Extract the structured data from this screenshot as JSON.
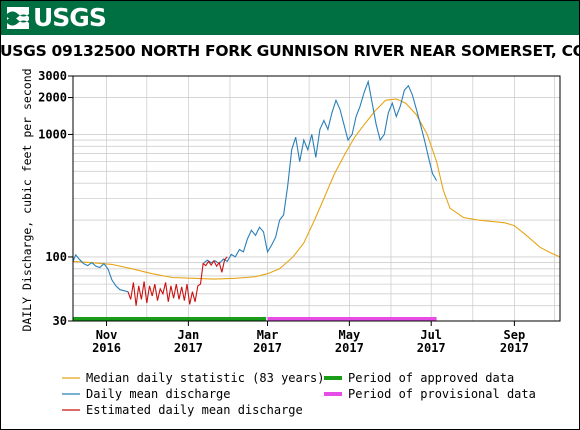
{
  "header": {
    "agency": "USGS"
  },
  "title": "USGS 09132500 NORTH FORK GUNNISON RIVER NEAR SOMERSET, CO.",
  "colors": {
    "banner": "#006f41",
    "median": "#e6a517",
    "mean": "#2a7fb8",
    "estimated": "#cc1111",
    "approved": "#1a9e1a",
    "provisional": "#e64ce6"
  },
  "legend": {
    "median": "Median daily statistic (83 years)",
    "mean": "Daily mean discharge",
    "estimated": "Estimated daily mean discharge",
    "approved": "Period of approved data",
    "provisional": "Period of provisional data"
  },
  "chart_data": {
    "type": "line",
    "title": "USGS 09132500 NORTH FORK GUNNISON RIVER NEAR SOMERSET, CO.",
    "ylabel": "DAILY Discharge, cubic feet per second",
    "xlabel": "",
    "yscale": "log",
    "ylim": [
      30,
      3000
    ],
    "xlim": [
      "2016-10-07",
      "2017-10-05"
    ],
    "y_ticks": [
      30,
      100,
      1000,
      2000,
      3000
    ],
    "x_ticks": [
      {
        "date": "2016-11-01",
        "month": "Nov",
        "year": "2016"
      },
      {
        "date": "2017-01-01",
        "month": "Jan",
        "year": "2017"
      },
      {
        "date": "2017-03-01",
        "month": "Mar",
        "year": "2017"
      },
      {
        "date": "2017-05-01",
        "month": "May",
        "year": "2017"
      },
      {
        "date": "2017-07-01",
        "month": "Jul",
        "year": "2017"
      },
      {
        "date": "2017-09-01",
        "month": "Sep",
        "year": "2017"
      }
    ],
    "grid": true,
    "legend_position": "bottom",
    "series": [
      {
        "name": "Median daily statistic (83 years)",
        "points": [
          [
            "2016-10-07",
            92
          ],
          [
            "2016-10-20",
            90
          ],
          [
            "2016-11-05",
            87
          ],
          [
            "2016-11-20",
            80
          ],
          [
            "2016-12-05",
            73
          ],
          [
            "2016-12-20",
            68
          ],
          [
            "2017-01-05",
            67
          ],
          [
            "2017-01-20",
            66
          ],
          [
            "2017-02-05",
            67
          ],
          [
            "2017-02-20",
            69
          ],
          [
            "2017-03-01",
            73
          ],
          [
            "2017-03-10",
            80
          ],
          [
            "2017-03-20",
            100
          ],
          [
            "2017-03-28",
            130
          ],
          [
            "2017-04-05",
            200
          ],
          [
            "2017-04-12",
            300
          ],
          [
            "2017-04-20",
            480
          ],
          [
            "2017-04-28",
            700
          ],
          [
            "2017-05-05",
            950
          ],
          [
            "2017-05-12",
            1200
          ],
          [
            "2017-05-20",
            1550
          ],
          [
            "2017-05-28",
            1900
          ],
          [
            "2017-06-05",
            1950
          ],
          [
            "2017-06-12",
            1800
          ],
          [
            "2017-06-20",
            1450
          ],
          [
            "2017-06-28",
            1000
          ],
          [
            "2017-07-05",
            600
          ],
          [
            "2017-07-10",
            350
          ],
          [
            "2017-07-15",
            250
          ],
          [
            "2017-07-25",
            210
          ],
          [
            "2017-08-05",
            200
          ],
          [
            "2017-08-15",
            195
          ],
          [
            "2017-08-25",
            190
          ],
          [
            "2017-09-01",
            180
          ],
          [
            "2017-09-10",
            150
          ],
          [
            "2017-09-20",
            120
          ],
          [
            "2017-09-28",
            108
          ],
          [
            "2017-10-05",
            100
          ]
        ]
      },
      {
        "name": "Daily mean discharge",
        "segments": [
          [
            [
              "2016-10-07",
              92
            ],
            [
              "2016-10-09",
              104
            ],
            [
              "2016-10-12",
              95
            ],
            [
              "2016-10-15",
              88
            ],
            [
              "2016-10-18",
              85
            ],
            [
              "2016-10-21",
              90
            ],
            [
              "2016-10-24",
              84
            ],
            [
              "2016-10-27",
              82
            ],
            [
              "2016-10-30",
              88
            ],
            [
              "2016-11-02",
              80
            ],
            [
              "2016-11-05",
              65
            ],
            [
              "2016-11-08",
              58
            ],
            [
              "2016-11-11",
              54
            ],
            [
              "2016-11-14",
              53
            ],
            [
              "2016-11-17",
              52
            ]
          ],
          [
            [
              "2017-01-12",
              88
            ],
            [
              "2017-01-15",
              94
            ],
            [
              "2017-01-18",
              90
            ],
            [
              "2017-01-21",
              93
            ],
            [
              "2017-01-24",
              88
            ],
            [
              "2017-01-27",
              96
            ],
            [
              "2017-01-30",
              92
            ],
            [
              "2017-02-02",
              105
            ],
            [
              "2017-02-05",
              100
            ],
            [
              "2017-02-08",
              115
            ],
            [
              "2017-02-11",
              110
            ],
            [
              "2017-02-14",
              140
            ],
            [
              "2017-02-17",
              165
            ],
            [
              "2017-02-20",
              150
            ],
            [
              "2017-02-23",
              175
            ],
            [
              "2017-02-26",
              160
            ],
            [
              "2017-03-01",
              110
            ],
            [
              "2017-03-04",
              125
            ],
            [
              "2017-03-07",
              145
            ],
            [
              "2017-03-10",
              200
            ],
            [
              "2017-03-13",
              220
            ],
            [
              "2017-03-16",
              380
            ],
            [
              "2017-03-19",
              750
            ],
            [
              "2017-03-22",
              950
            ],
            [
              "2017-03-25",
              600
            ],
            [
              "2017-03-28",
              900
            ],
            [
              "2017-03-31",
              750
            ],
            [
              "2017-04-03",
              1000
            ],
            [
              "2017-04-06",
              650
            ],
            [
              "2017-04-09",
              1100
            ],
            [
              "2017-04-12",
              1300
            ],
            [
              "2017-04-15",
              1100
            ],
            [
              "2017-04-18",
              1500
            ],
            [
              "2017-04-21",
              1900
            ],
            [
              "2017-04-24",
              1600
            ],
            [
              "2017-04-27",
              1200
            ],
            [
              "2017-04-30",
              900
            ],
            [
              "2017-05-03",
              1000
            ],
            [
              "2017-05-06",
              1400
            ],
            [
              "2017-05-09",
              1700
            ],
            [
              "2017-05-12",
              2200
            ],
            [
              "2017-05-15",
              2700
            ],
            [
              "2017-05-18",
              1800
            ],
            [
              "2017-05-21",
              1200
            ],
            [
              "2017-05-24",
              900
            ],
            [
              "2017-05-27",
              1000
            ],
            [
              "2017-05-30",
              1500
            ],
            [
              "2017-06-02",
              1800
            ],
            [
              "2017-06-05",
              1400
            ],
            [
              "2017-06-08",
              1700
            ],
            [
              "2017-06-11",
              2300
            ],
            [
              "2017-06-14",
              2500
            ],
            [
              "2017-06-17",
              2100
            ],
            [
              "2017-06-20",
              1600
            ],
            [
              "2017-06-23",
              1200
            ],
            [
              "2017-06-26",
              900
            ],
            [
              "2017-06-29",
              650
            ],
            [
              "2017-07-02",
              480
            ],
            [
              "2017-07-05",
              420
            ]
          ]
        ]
      },
      {
        "name": "Estimated daily mean discharge",
        "points": [
          [
            "2016-11-17",
            52
          ],
          [
            "2016-11-19",
            45
          ],
          [
            "2016-11-21",
            62
          ],
          [
            "2016-11-23",
            40
          ],
          [
            "2016-11-25",
            58
          ],
          [
            "2016-11-27",
            45
          ],
          [
            "2016-11-29",
            63
          ],
          [
            "2016-12-01",
            42
          ],
          [
            "2016-12-03",
            58
          ],
          [
            "2016-12-05",
            48
          ],
          [
            "2016-12-07",
            60
          ],
          [
            "2016-12-09",
            44
          ],
          [
            "2016-12-11",
            55
          ],
          [
            "2016-12-13",
            50
          ],
          [
            "2016-12-15",
            62
          ],
          [
            "2016-12-17",
            43
          ],
          [
            "2016-12-19",
            58
          ],
          [
            "2016-12-21",
            46
          ],
          [
            "2016-12-23",
            60
          ],
          [
            "2016-12-25",
            45
          ],
          [
            "2016-12-27",
            57
          ],
          [
            "2016-12-29",
            44
          ],
          [
            "2016-12-31",
            60
          ],
          [
            "2017-01-02",
            41
          ],
          [
            "2017-01-04",
            52
          ],
          [
            "2017-01-06",
            43
          ],
          [
            "2017-01-08",
            58
          ],
          [
            "2017-01-10",
            60
          ],
          [
            "2017-01-12",
            88
          ],
          [
            "2017-01-14",
            85
          ],
          [
            "2017-01-16",
            92
          ],
          [
            "2017-01-18",
            86
          ],
          [
            "2017-01-20",
            93
          ],
          [
            "2017-01-22",
            84
          ],
          [
            "2017-01-24",
            90
          ],
          [
            "2017-01-26",
            75
          ],
          [
            "2017-01-28",
            95
          ],
          [
            "2017-01-30",
            100
          ]
        ]
      }
    ],
    "periods": [
      {
        "name": "Period of approved data",
        "start": "2016-10-07",
        "end": "2017-02-28"
      },
      {
        "name": "Period of provisional data",
        "start": "2017-03-01",
        "end": "2017-07-05"
      }
    ]
  }
}
